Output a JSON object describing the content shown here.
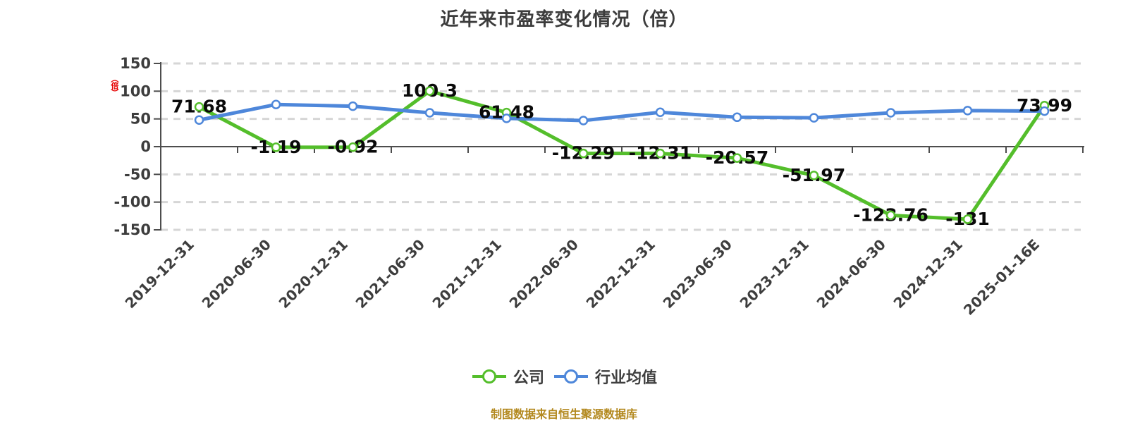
{
  "chart_data": {
    "type": "line",
    "title": "近年来市盈率变化情况（倍）",
    "y_axis_unit": "（倍）",
    "y_axis_unit_color": "#e60000",
    "categories": [
      "2019-12-31",
      "2020-06-30",
      "2020-12-31",
      "2021-06-30",
      "2021-12-31",
      "2022-06-30",
      "2022-12-31",
      "2023-06-30",
      "2023-12-31",
      "2024-06-30",
      "2024-12-31",
      "2025-01-16E"
    ],
    "y_ticks": [
      150,
      100,
      50,
      0,
      -50,
      -100,
      -150
    ],
    "ylim": [
      -150,
      150
    ],
    "grid": "horizontal-dashed",
    "legend_position": "bottom",
    "series": [
      {
        "name": "公司",
        "color": "#54be2b",
        "values": [
          71.68,
          -1.19,
          -0.92,
          100.3,
          61.48,
          -12.29,
          -12.31,
          -20.57,
          -51.97,
          -123.76,
          -131,
          73.99
        ],
        "labels": [
          "71.68",
          "-1.19",
          "-0.92",
          "100.3",
          "61.48",
          "-12.29",
          "-12.31",
          "-20.57",
          "-51.97",
          "-123.76",
          "-131",
          "73.99"
        ]
      },
      {
        "name": "行业均值",
        "color": "#4e87da",
        "values": [
          48,
          76,
          73,
          61,
          51,
          47,
          62,
          53,
          52,
          61,
          65,
          64
        ]
      }
    ],
    "colors": {
      "axis_line": "#4d4d4d",
      "grid_line": "#d6d6d6",
      "tick_label": "#3d3d3d",
      "data_label": "#0a0a0a"
    }
  },
  "footer": {
    "source_note": "制图数据来自恒生聚源数据库",
    "color": "#b3891f"
  }
}
